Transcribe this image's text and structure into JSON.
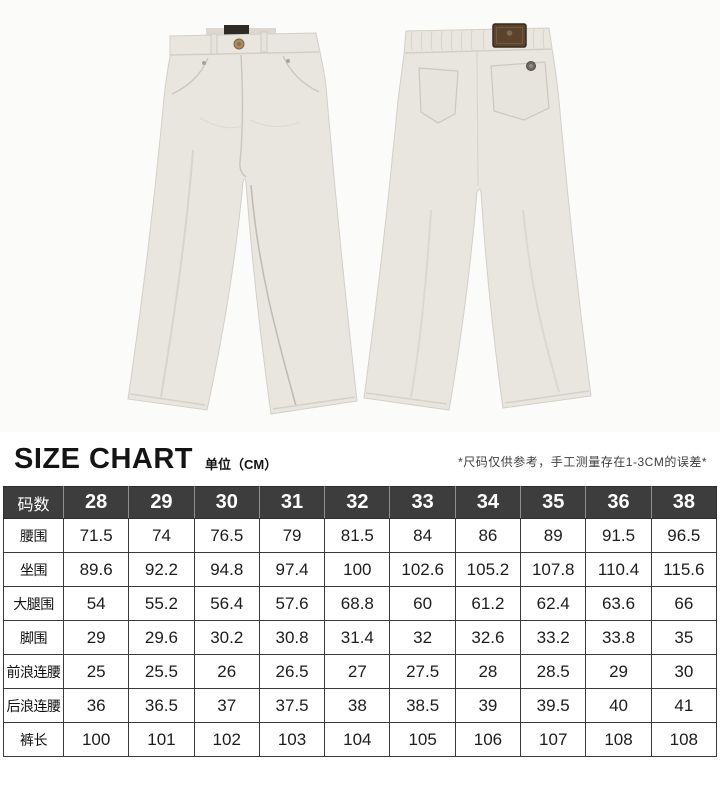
{
  "photo": {
    "front_view_alt": "pants front view",
    "back_view_alt": "pants back view",
    "colors": {
      "fabric": "#e9e6e0",
      "fabric_shadow": "#d3cfc8",
      "waist_tag": "#2e2a25",
      "leather_patch": "#5b442e",
      "metal_button": "#aa8b5b",
      "background": "#fbfbfa"
    }
  },
  "chart_header": {
    "title": "SIZE CHART",
    "unit": "单位（CM）",
    "note": "*尺码仅供参考，手工测量存在1-3CM的误差*"
  },
  "size_table": {
    "corner_label": "码数",
    "sizes": [
      "28",
      "29",
      "30",
      "31",
      "32",
      "33",
      "34",
      "35",
      "36",
      "38"
    ],
    "rows": [
      {
        "label": "腰围",
        "values": [
          "71.5",
          "74",
          "76.5",
          "79",
          "81.5",
          "84",
          "86",
          "89",
          "91.5",
          "96.5"
        ]
      },
      {
        "label": "坐围",
        "values": [
          "89.6",
          "92.2",
          "94.8",
          "97.4",
          "100",
          "102.6",
          "105.2",
          "107.8",
          "110.4",
          "115.6"
        ]
      },
      {
        "label": "大腿围",
        "values": [
          "54",
          "55.2",
          "56.4",
          "57.6",
          "68.8",
          "60",
          "61.2",
          "62.4",
          "63.6",
          "66"
        ]
      },
      {
        "label": "脚围",
        "values": [
          "29",
          "29.6",
          "30.2",
          "30.8",
          "31.4",
          "32",
          "32.6",
          "33.2",
          "33.8",
          "35"
        ]
      },
      {
        "label": "前浪连腰",
        "values": [
          "25",
          "25.5",
          "26",
          "26.5",
          "27",
          "27.5",
          "28",
          "28.5",
          "29",
          "30"
        ]
      },
      {
        "label": "后浪连腰",
        "values": [
          "36",
          "36.5",
          "37",
          "37.5",
          "38",
          "38.5",
          "39",
          "39.5",
          "40",
          "41"
        ]
      },
      {
        "label": "裤长",
        "values": [
          "100",
          "101",
          "102",
          "103",
          "104",
          "105",
          "106",
          "107",
          "108",
          "108"
        ]
      }
    ],
    "colors": {
      "header_bg": "#3d3d3d",
      "header_text": "#ffffff",
      "border": "#3a3a3a",
      "header_separator": "#8f8f8f"
    }
  }
}
